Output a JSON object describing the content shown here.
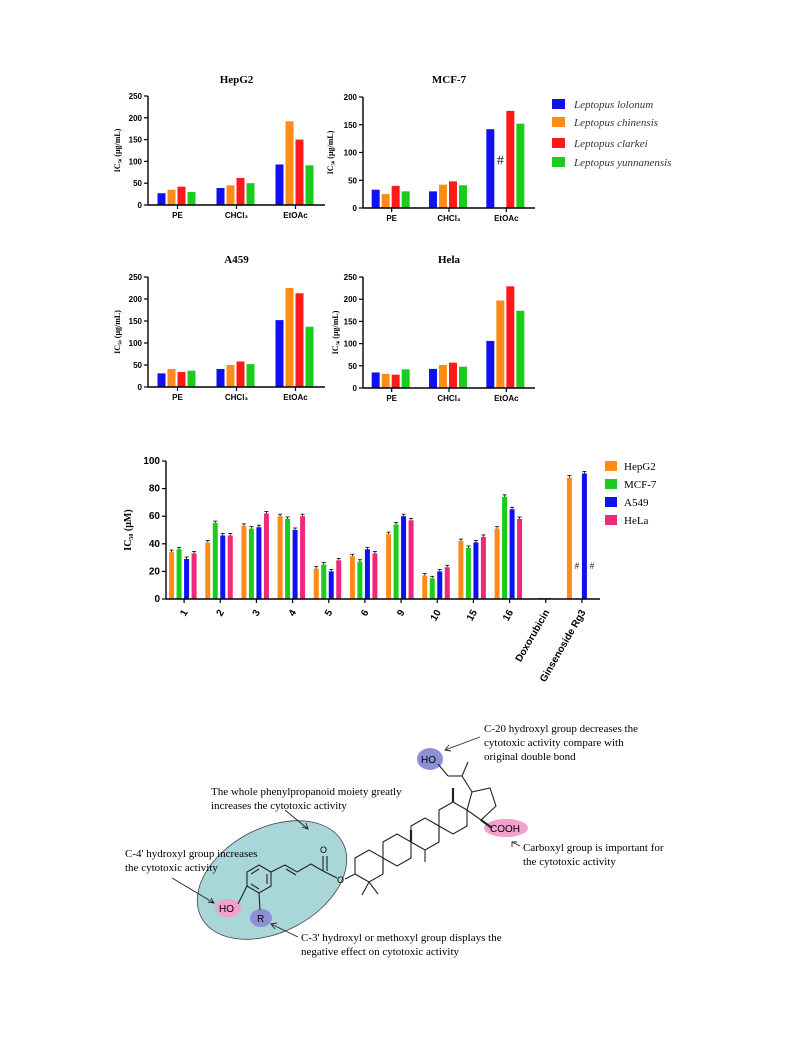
{
  "colors": {
    "blue": "#1010f0",
    "orange": "#ff8c1a",
    "red": "#ff1a1a",
    "green": "#1ccc1c",
    "pink": "#f0287a",
    "teal_ellipse": "#a9d6d8",
    "purple_ellipse": "#8e90d6",
    "pink_ellipse": "#f2a0cc"
  },
  "chart_data": [
    {
      "id": "hepg2",
      "type": "bar",
      "title": "HepG2",
      "ylabel": "IC₅₀ (μg/mL)",
      "ylim": [
        0,
        250
      ],
      "yticks": [
        "0",
        "50",
        "100",
        "150",
        "200",
        "250"
      ],
      "categories": [
        "PE",
        "CHCl₃",
        "EtOAc"
      ],
      "series": [
        {
          "name": "Leptopus lolonum",
          "color": "#1010f0",
          "values": [
            27,
            39,
            93
          ]
        },
        {
          "name": "Leptopus chinensis",
          "color": "#ff8c1a",
          "values": [
            35,
            45,
            192
          ]
        },
        {
          "name": "Leptopus clarkei",
          "color": "#ff1a1a",
          "values": [
            42,
            62,
            150
          ]
        },
        {
          "name": "Leptopus yunnanensis",
          "color": "#1ccc1c",
          "values": [
            30,
            50,
            91
          ]
        }
      ]
    },
    {
      "id": "mcf7",
      "type": "bar",
      "title": "MCF-7",
      "ylabel": "IC₅₀ (μg/mL)",
      "ylim": [
        0,
        200
      ],
      "yticks": [
        "0",
        "50",
        "100",
        "150",
        "200"
      ],
      "categories": [
        "PE",
        "CHCl₃",
        "EtOAc"
      ],
      "annotations": [
        {
          "text": "#",
          "category": 2,
          "series": 1
        }
      ],
      "series": [
        {
          "name": "Leptopus lolonum",
          "color": "#1010f0",
          "values": [
            33,
            30,
            142
          ]
        },
        {
          "name": "Leptopus chinensis",
          "color": "#ff8c1a",
          "values": [
            25,
            42,
            null
          ]
        },
        {
          "name": "Leptopus clarkei",
          "color": "#ff1a1a",
          "values": [
            40,
            48,
            175
          ]
        },
        {
          "name": "Leptopus yunnanensis",
          "color": "#1ccc1c",
          "values": [
            30,
            41,
            152
          ]
        }
      ]
    },
    {
      "id": "a459",
      "type": "bar",
      "title": "A459",
      "ylabel": "IC₅₀ (μg/mL)",
      "ylim": [
        0,
        250
      ],
      "yticks": [
        "0",
        "50",
        "100",
        "150",
        "200",
        "250"
      ],
      "categories": [
        "PE",
        "CHCl₃",
        "EtOAc"
      ],
      "series": [
        {
          "name": "Leptopus lolonum",
          "color": "#1010f0",
          "values": [
            31,
            41,
            152
          ]
        },
        {
          "name": "Leptopus chinensis",
          "color": "#ff8c1a",
          "values": [
            41,
            50,
            225
          ]
        },
        {
          "name": "Leptopus clarkei",
          "color": "#ff1a1a",
          "values": [
            34,
            58,
            213
          ]
        },
        {
          "name": "Leptopus yunnanensis",
          "color": "#1ccc1c",
          "values": [
            37,
            52,
            137
          ]
        }
      ]
    },
    {
      "id": "hela",
      "type": "bar",
      "title": "Hela",
      "ylabel": "IC₅₀ (μg/mL)",
      "ylim": [
        0,
        250
      ],
      "yticks": [
        "0",
        "50",
        "100",
        "150",
        "200",
        "250"
      ],
      "categories": [
        "PE",
        "CHCl₃",
        "EtOAc"
      ],
      "series": [
        {
          "name": "Leptopus lolonum",
          "color": "#1010f0",
          "values": [
            35,
            43,
            106
          ]
        },
        {
          "name": "Leptopus chinensis",
          "color": "#ff8c1a",
          "values": [
            32,
            52,
            197
          ]
        },
        {
          "name": "Leptopus clarkei",
          "color": "#ff1a1a",
          "values": [
            30,
            57,
            229
          ]
        },
        {
          "name": "Leptopus yunnanensis",
          "color": "#1ccc1c",
          "values": [
            42,
            48,
            174
          ]
        }
      ]
    },
    {
      "id": "compounds",
      "type": "bar",
      "title": "",
      "ylabel": "IC₅₀ (μM)",
      "ylim": [
        0,
        100
      ],
      "yticks": [
        "0",
        "20",
        "40",
        "60",
        "80",
        "100"
      ],
      "categories": [
        "1",
        "2",
        "3",
        "4",
        "5",
        "6",
        "9",
        "10",
        "15",
        "16",
        "Doxorubicin",
        "Ginsenoside Rg3"
      ],
      "annotations": [
        {
          "text": "#",
          "category": 11,
          "series": 1
        },
        {
          "text": "#",
          "category": 11,
          "series": 3
        }
      ],
      "series": [
        {
          "name": "HepG2",
          "color": "#ff8c1a",
          "values": [
            34,
            41,
            53,
            60,
            22,
            31,
            47,
            17,
            42,
            51,
            0.5,
            88
          ]
        },
        {
          "name": "MCF-7",
          "color": "#1ccc1c",
          "values": [
            36,
            55,
            51,
            58,
            25,
            27,
            54,
            15,
            37,
            74,
            0.8,
            null
          ]
        },
        {
          "name": "A549",
          "color": "#1010f0",
          "values": [
            29,
            46,
            52,
            50,
            20,
            36,
            60,
            20,
            41,
            65,
            0.6,
            91
          ]
        },
        {
          "name": "HeLa",
          "color": "#f0287a",
          "values": [
            33,
            46,
            62,
            60,
            28,
            33,
            57,
            23,
            45,
            58,
            null,
            null
          ]
        }
      ]
    }
  ],
  "legend_top": [
    "Leptopus lolonum",
    "Leptopus chinensis",
    "Leptopus clarkei",
    "Leptopus yunnanensis"
  ],
  "legend_bottom": [
    "HepG2",
    "MCF-7",
    "A549",
    "HeLa"
  ],
  "sar": {
    "c20_label": "HO",
    "cooh_label": "COOH",
    "ho4_label": "HO",
    "r_label": "R",
    "o_label": "O",
    "c20_note": [
      "C-20 hydroxyl group decreases the",
      "cytotoxic activity compare with",
      "original double bond"
    ],
    "phenyl_note": [
      "The whole phenylpropanoid moiety greatly",
      "increases the cytotoxic activity"
    ],
    "c4_note": [
      "C-4' hydroxyl group increases",
      "the cytotoxic activity"
    ],
    "carboxyl_note": [
      "Carboxyl group is important for",
      "the cytotoxic activity"
    ],
    "c3_note": [
      "C-3' hydroxyl or methoxyl group displays the",
      "negative effect on cytotoxic activity"
    ]
  }
}
